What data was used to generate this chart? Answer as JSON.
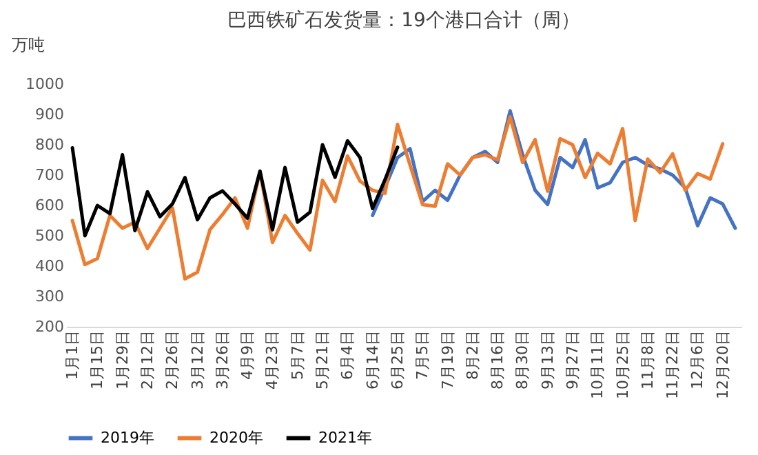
{
  "chart_data": {
    "type": "line",
    "title": "巴西铁矿石发货量：19个港口合计（周）",
    "ylabel": "万吨",
    "categories": [
      "1月1日",
      null,
      "1月15日",
      null,
      "1月29日",
      null,
      "2月12日",
      null,
      "2月26日",
      null,
      "3月12日",
      null,
      "3月26日",
      null,
      "4月9日",
      null,
      "4月23日",
      null,
      "5月7日",
      null,
      "5月21日",
      null,
      "6月4日",
      null,
      "6月14日",
      null,
      "6月25日",
      null,
      "7月5日",
      null,
      "7月19日",
      null,
      "8月2日",
      null,
      "8月16日",
      null,
      "8月30日",
      null,
      "9月13日",
      null,
      "9月27日",
      null,
      "10月11日",
      null,
      "10月25日",
      null,
      "11月8日",
      null,
      "11月22日",
      null,
      "12月6日",
      null,
      "12月20日",
      null
    ],
    "series": [
      {
        "name": "2019年",
        "color": "#4472c4",
        "values": [
          null,
          null,
          null,
          null,
          null,
          null,
          null,
          null,
          null,
          null,
          null,
          null,
          null,
          null,
          null,
          null,
          null,
          null,
          null,
          null,
          null,
          null,
          null,
          null,
          567,
          660,
          758,
          787,
          613,
          650,
          617,
          700,
          758,
          778,
          742,
          912,
          767,
          650,
          603,
          758,
          725,
          817,
          658,
          675,
          742,
          758,
          733,
          720,
          700,
          658,
          533,
          625,
          605,
          525
        ]
      },
      {
        "name": "2020年",
        "color": "#ed7d31",
        "values": [
          550,
          405,
          425,
          567,
          525,
          545,
          458,
          525,
          592,
          358,
          380,
          520,
          570,
          625,
          525,
          713,
          478,
          567,
          508,
          453,
          683,
          613,
          763,
          680,
          650,
          640,
          867,
          733,
          603,
          597,
          737,
          700,
          758,
          767,
          750,
          892,
          742,
          817,
          647,
          820,
          800,
          692,
          772,
          737,
          853,
          550,
          753,
          708,
          770,
          650,
          705,
          687,
          803,
          null
        ]
      },
      {
        "name": "2021年",
        "color": "#000000",
        "values": [
          790,
          500,
          600,
          573,
          767,
          517,
          645,
          563,
          605,
          692,
          553,
          625,
          648,
          605,
          558,
          713,
          520,
          725,
          545,
          578,
          800,
          693,
          813,
          758,
          590,
          685,
          792,
          null,
          null,
          null,
          null,
          null,
          null,
          null,
          null,
          null,
          null,
          null,
          null,
          null,
          null,
          null,
          null,
          null,
          null,
          null,
          null,
          null,
          null,
          null,
          null,
          null,
          null,
          null
        ]
      }
    ],
    "ylim": [
      200,
      1000
    ],
    "yticks": [
      200,
      300,
      400,
      500,
      600,
      700,
      800,
      900,
      1000
    ],
    "grid": false,
    "legend": "bottom",
    "line_style": "solid",
    "marker": "none"
  }
}
